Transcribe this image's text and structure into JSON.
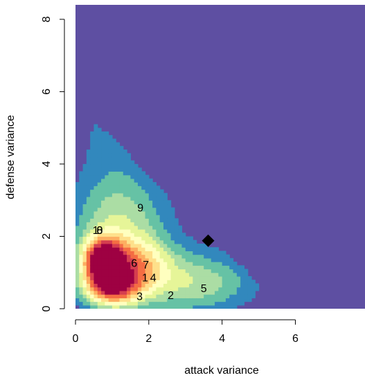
{
  "chart_data": {
    "type": "heatmap",
    "title": "",
    "xlabel": "attack variance",
    "ylabel": "defense variance",
    "xlim": [
      0,
      7.9
    ],
    "ylim": [
      0,
      8.4
    ],
    "xticks": [
      0,
      2,
      4,
      6
    ],
    "yticks": [
      0,
      2,
      4,
      6,
      8
    ],
    "colors": {
      "background": "#5e4fa2",
      "palette": [
        "#5e4fa2",
        "#3288bd",
        "#66c2a5",
        "#abdda4",
        "#e6f598",
        "#ffffbf",
        "#fee08b",
        "#fdae61",
        "#f46d43",
        "#d53e4f",
        "#9e0142"
      ]
    },
    "density": [
      {
        "x": 0.75,
        "y": 1.35,
        "sx": 0.38,
        "sy": 0.42,
        "w": 1.0
      },
      {
        "x": 1.0,
        "y": 0.6,
        "sx": 0.5,
        "sy": 0.35,
        "w": 0.75
      },
      {
        "x": 1.6,
        "y": 1.2,
        "sx": 0.6,
        "sy": 0.5,
        "w": 0.45
      },
      {
        "x": 1.2,
        "y": 2.3,
        "sx": 0.8,
        "sy": 0.9,
        "w": 0.28
      },
      {
        "x": 2.6,
        "y": 0.8,
        "sx": 1.0,
        "sy": 0.6,
        "w": 0.22
      },
      {
        "x": 3.8,
        "y": 0.7,
        "sx": 0.8,
        "sy": 0.45,
        "w": 0.12
      },
      {
        "x": 1.0,
        "y": 4.5,
        "sx": 0.6,
        "sy": 0.9,
        "w": 0.07
      },
      {
        "x": 1.0,
        "y": 5.7,
        "sx": 0.4,
        "sy": 0.5,
        "w": 0.05
      },
      {
        "x": 0.25,
        "y": 7.2,
        "sx": 0.2,
        "sy": 0.3,
        "w": 0.05
      }
    ],
    "labels": [
      {
        "text": "1",
        "x": 0.55,
        "y": 2.18
      },
      {
        "text": "8",
        "x": 0.66,
        "y": 2.18
      },
      {
        "text": "0",
        "x": 0.66,
        "y": 2.18
      },
      {
        "text": "6",
        "x": 1.6,
        "y": 1.27
      },
      {
        "text": "7",
        "x": 1.92,
        "y": 1.22
      },
      {
        "text": "1",
        "x": 1.9,
        "y": 0.87
      },
      {
        "text": "4",
        "x": 2.12,
        "y": 0.87
      },
      {
        "text": "3",
        "x": 1.75,
        "y": 0.35
      },
      {
        "text": "2",
        "x": 2.6,
        "y": 0.38
      },
      {
        "text": "5",
        "x": 3.5,
        "y": 0.57
      },
      {
        "text": "9",
        "x": 1.77,
        "y": 2.8
      }
    ],
    "marker": {
      "shape": "diamond",
      "x": 3.62,
      "y": 1.88,
      "color": "#000000"
    }
  }
}
